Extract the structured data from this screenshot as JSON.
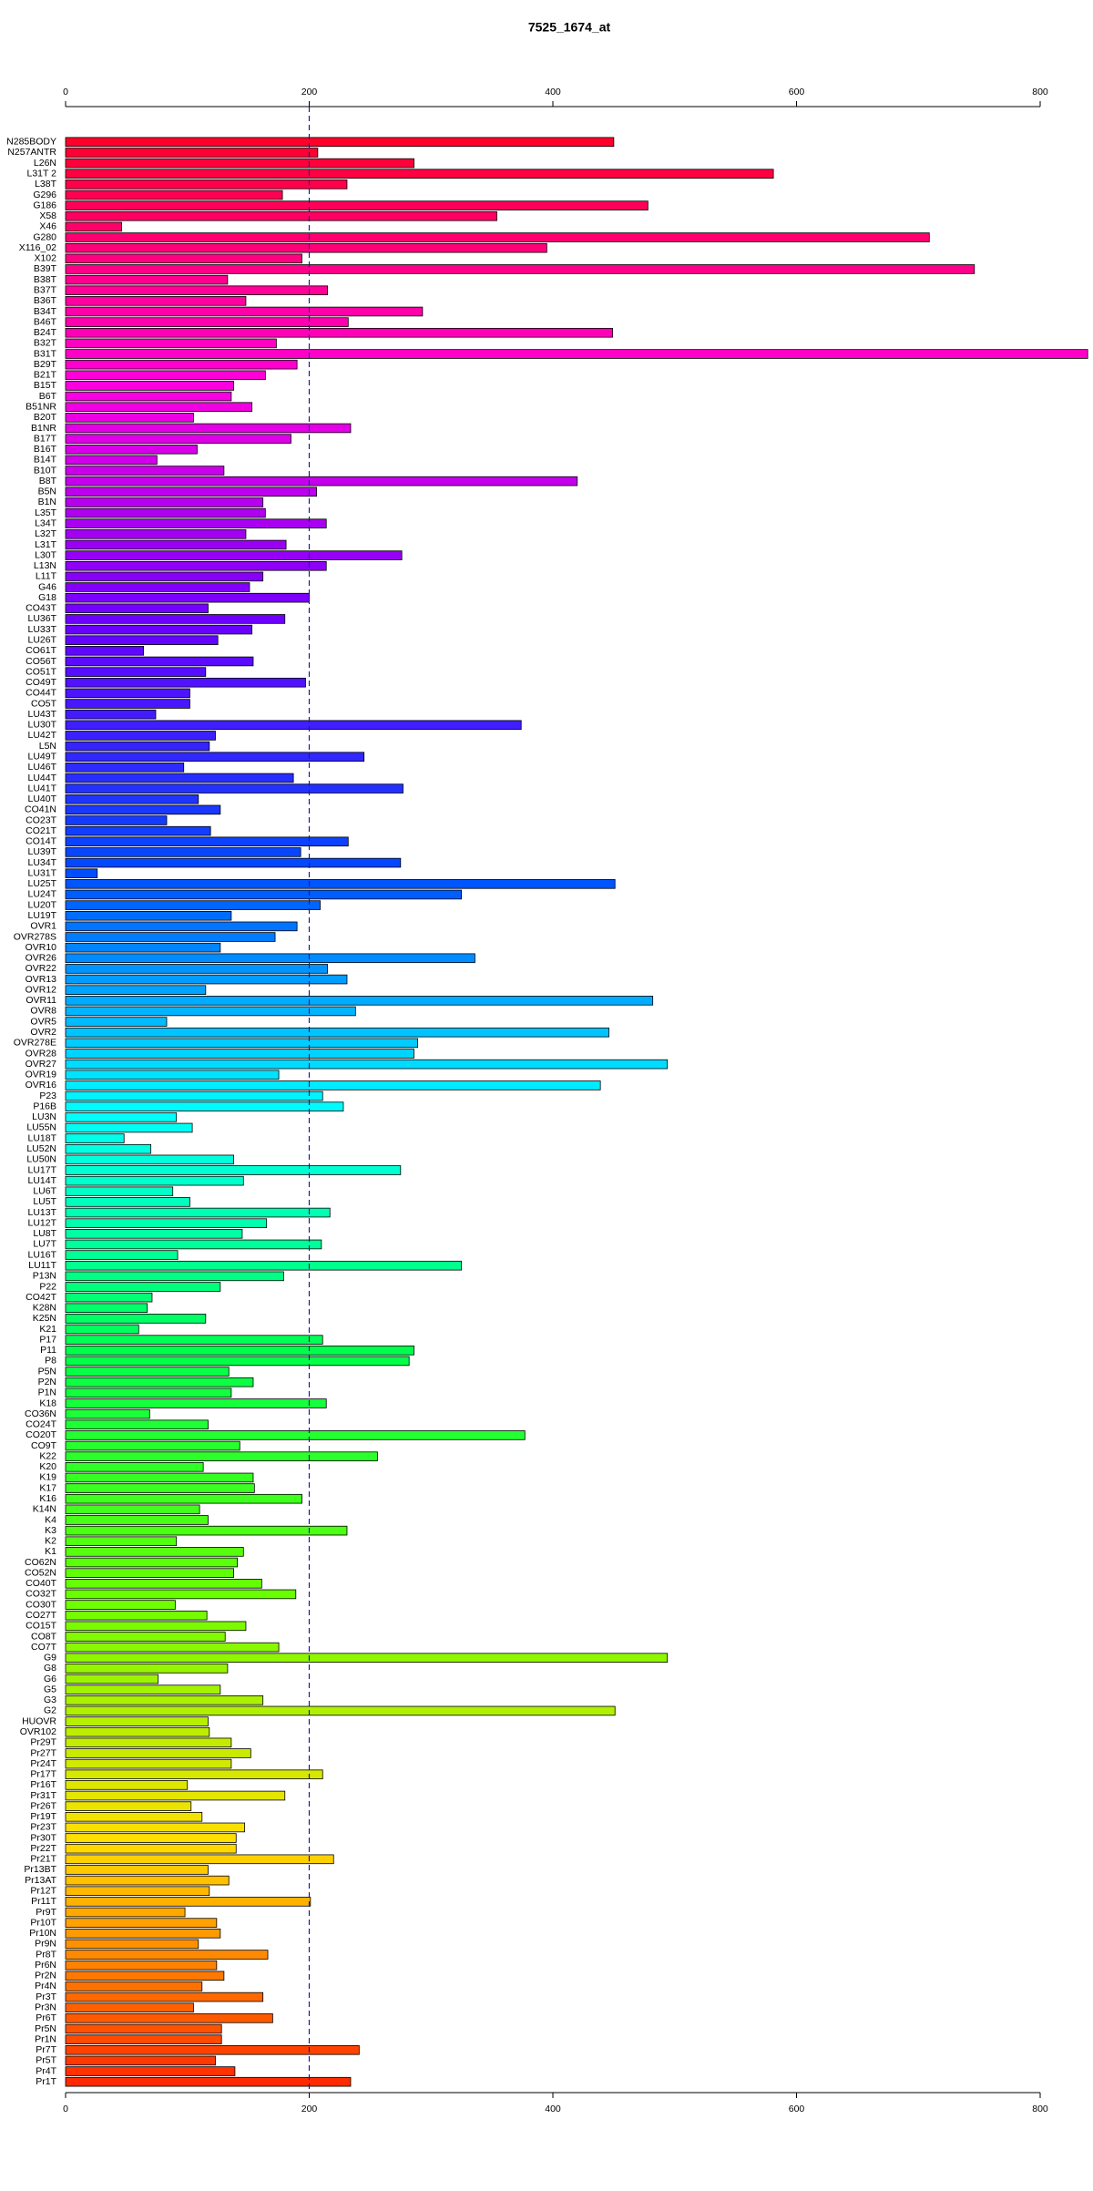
{
  "chart_data": {
    "type": "barh",
    "title": "7525_1674_at",
    "categories": [
      "N285BODY",
      "N257ANTR",
      "L26N",
      "L31T 2",
      "L38T",
      "G296",
      "G186",
      "X58",
      "X46",
      "G280",
      "X116_02",
      "X102",
      "B39T",
      "B38T",
      "B37T",
      "B36T",
      "B34T",
      "B46T",
      "B24T",
      "B32T",
      "B31T",
      "B29T",
      "B21T",
      "B15T",
      "B6T",
      "B51NR",
      "B20T",
      "B1NR",
      "B17T",
      "B16T",
      "B14T",
      "B10T",
      "B8T",
      "B5N",
      "B1N",
      "L35T",
      "L34T",
      "L32T",
      "L31T",
      "L30T",
      "L13N",
      "L11T",
      "G46",
      "G18",
      "CO43T",
      "LU36T",
      "LU33T",
      "LU26T",
      "CO61T",
      "CO56T",
      "CO51T",
      "CO49T",
      "CO44T",
      "CO5T",
      "LU43T",
      "LU30T",
      "LU42T",
      "L5N",
      "LU49T",
      "LU46T",
      "LU44T",
      "LU41T",
      "LU40T",
      "CO41N",
      "CO23T",
      "CO21T",
      "CO14T",
      "LU39T",
      "LU34T",
      "LU31T",
      "LU25T",
      "LU24T",
      "LU20T",
      "LU19T",
      "OVR1",
      "OVR278S",
      "OVR10",
      "OVR26",
      "OVR22",
      "OVR13",
      "OVR12",
      "OVR11",
      "OVR8",
      "OVR5",
      "OVR2",
      "OVR278E",
      "OVR28",
      "OVR27",
      "OVR19",
      "OVR16",
      "P23",
      "P16B",
      "LU3N",
      "LU55N",
      "LU18T",
      "LU52N",
      "LU50N",
      "LU17T",
      "LU14T",
      "LU6T",
      "LU5T",
      "LU13T",
      "LU12T",
      "LU8T",
      "LU7T",
      "LU16T",
      "LU11T",
      "P13N",
      "P22",
      "CO42T",
      "K28N",
      "K25N",
      "K21",
      "P17",
      "P11",
      "P8",
      "P5N",
      "P2N",
      "P1N",
      "K18",
      "CO36N",
      "CO24T",
      "CO20T",
      "CO9T",
      "K22",
      "K20",
      "K19",
      "K17",
      "K16",
      "K14N",
      "K4",
      "K3",
      "K2",
      "K1",
      "CO62N",
      "CO52N",
      "CO40T",
      "CO32T",
      "CO30T",
      "CO27T",
      "CO15T",
      "CO8T",
      "CO7T",
      "G9",
      "G8",
      "G6",
      "G5",
      "G3",
      "G2",
      "HUOVR",
      "OVR102",
      "Pr29T",
      "Pr27T",
      "Pr24T",
      "Pr17T",
      "Pr16T",
      "Pr31T",
      "Pr26T",
      "Pr19T",
      "Pr23T",
      "Pr30T",
      "Pr22T",
      "Pr21T",
      "Pr13BT",
      "Pr13AT",
      "Pr12T",
      "Pr11T",
      "Pr9T",
      "Pr10T",
      "Pr10N",
      "Pr9N",
      "Pr8T",
      "Pr6N",
      "Pr2N",
      "Pr4N",
      "Pr3T",
      "Pr3N",
      "Pr6T",
      "Pr5N",
      "Pr1N",
      "Pr7T",
      "Pr5T",
      "Pr4T",
      "Pr1T"
    ],
    "values": [
      450,
      207,
      286,
      581,
      231,
      178,
      478,
      354,
      46,
      709,
      395,
      194,
      746,
      133,
      215,
      148,
      293,
      232,
      449,
      173,
      839,
      190,
      164,
      138,
      136,
      153,
      105,
      234,
      185,
      108,
      75,
      130,
      420,
      206,
      162,
      164,
      214,
      148,
      181,
      276,
      214,
      162,
      151,
      200,
      117,
      180,
      153,
      125,
      64,
      154,
      115,
      197,
      102,
      102,
      74,
      374,
      123,
      118,
      245,
      97,
      187,
      277,
      109,
      127,
      83,
      119,
      232,
      193,
      275,
      26,
      451,
      325,
      209,
      136,
      190,
      172,
      127,
      336,
      215,
      231,
      115,
      482,
      238,
      83,
      446,
      289,
      286,
      494,
      175,
      439,
      211,
      228,
      91,
      104,
      48,
      70,
      138,
      275,
      146,
      88,
      102,
      217,
      165,
      145,
      210,
      92,
      325,
      179,
      127,
      71,
      67,
      115,
      60,
      211,
      286,
      282,
      134,
      154,
      136,
      214,
      69,
      117,
      377,
      143,
      256,
      113,
      154,
      155,
      194,
      110,
      117,
      231,
      91,
      146,
      141,
      138,
      161,
      189,
      90,
      116,
      148,
      131,
      175,
      494,
      133,
      76,
      127,
      162,
      451,
      117,
      118,
      136,
      152,
      136,
      211,
      100,
      180,
      103,
      112,
      147,
      140,
      140,
      220,
      117,
      134,
      118,
      201,
      98,
      124,
      127,
      109,
      166,
      124,
      130,
      112,
      162,
      105,
      170,
      128,
      128,
      241,
      123,
      139,
      234
    ],
    "color_stops": [
      "#ff002a",
      "#ff00df",
      "#6a00ff",
      "#004aff",
      "#00ffff",
      "#00ff4a",
      "#6aff00",
      "#ffdf00",
      "#ff2a00"
    ],
    "xlim": [
      0,
      800
    ],
    "xticks": [
      0,
      200,
      400,
      600,
      800
    ],
    "vline": 200
  }
}
